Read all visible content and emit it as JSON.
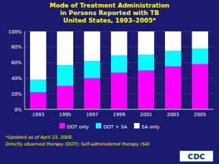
{
  "chart_data": {
    "type": "bar",
    "stacked": true,
    "title": "Mode of Treatment Administration\nin Persons Reported with TB\nUnited States, 1993–2005*",
    "categories": [
      "1993",
      "1995",
      "1997",
      "1999",
      "2001",
      "2003",
      "2005"
    ],
    "series": [
      {
        "name": "DOT only",
        "color": "#FF00FF",
        "values": [
          22,
          30,
          40,
          47,
          50,
          55,
          58
        ]
      },
      {
        "name": "DOT + SA",
        "color": "#00FFFF",
        "values": [
          16,
          27,
          22,
          22,
          20,
          20,
          20
        ]
      },
      {
        "name": "SA only",
        "color": "#FFFFFF",
        "values": [
          62,
          43,
          38,
          31,
          30,
          25,
          22
        ]
      }
    ],
    "ylim": [
      0,
      100
    ],
    "yticks": [
      {
        "value": 0,
        "label": "0%"
      },
      {
        "value": 20,
        "label": "20%"
      },
      {
        "value": 40,
        "label": "40%"
      },
      {
        "value": 60,
        "label": "60%"
      },
      {
        "value": 80,
        "label": "80%"
      },
      {
        "value": 100,
        "label": "100%"
      }
    ],
    "grid": true,
    "legend": "bottom",
    "annotations": [
      "*Updated as of April 23, 2008.",
      "Directly observed therapy (DOT); Self-administered therapy (SA)",
      "CDC"
    ]
  }
}
